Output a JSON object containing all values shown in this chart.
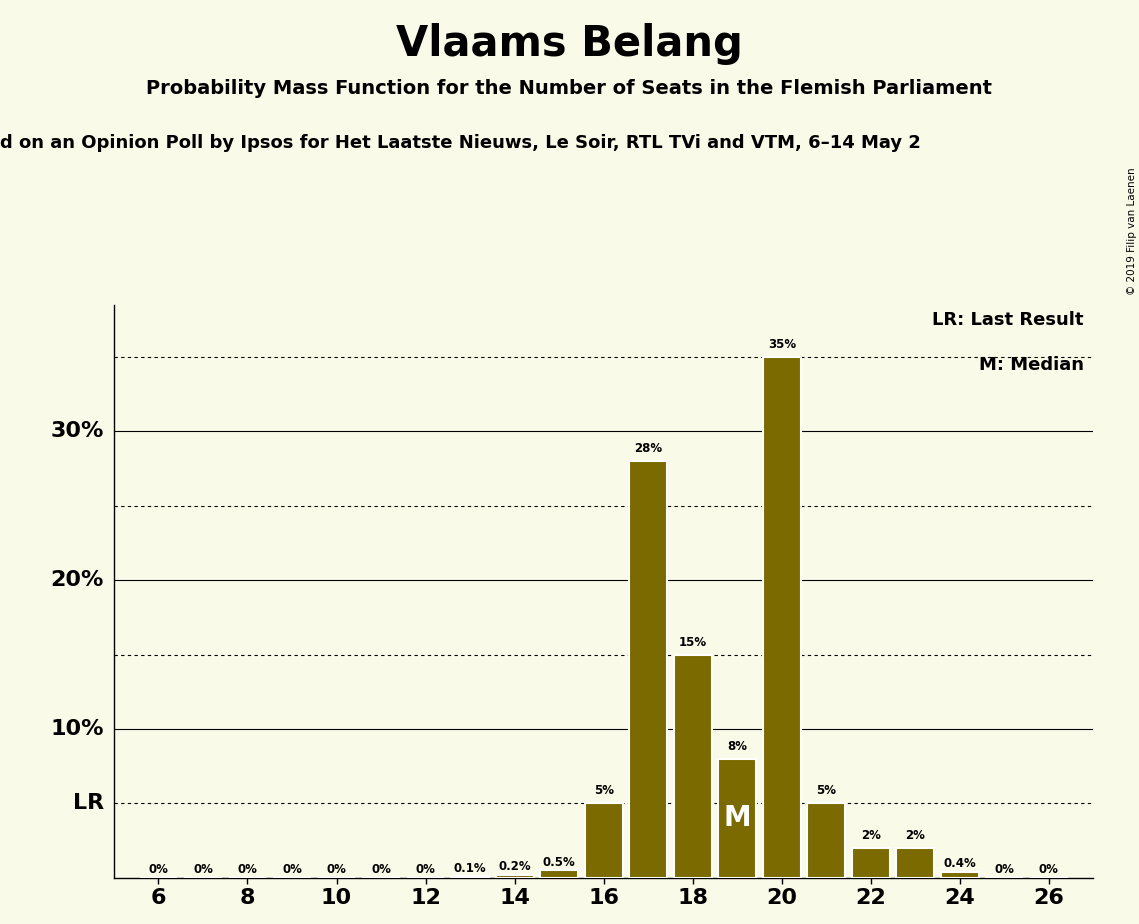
{
  "title": "Vlaams Belang",
  "subtitle": "Probability Mass Function for the Number of Seats in the Flemish Parliament",
  "subtitle2": "d on an Opinion Poll by Ipsos for Het Laatste Nieuws, Le Soir, RTL TVi and VTM, 6–14 May 2",
  "copyright": "© 2019 Filip van Laenen",
  "background_color": "#FAFAE8",
  "bar_color": "#7A6A00",
  "seats": [
    6,
    7,
    8,
    9,
    10,
    11,
    12,
    13,
    14,
    15,
    16,
    17,
    18,
    19,
    20,
    21,
    22,
    23,
    24,
    25,
    26
  ],
  "probabilities": [
    0.0,
    0.0,
    0.0,
    0.0,
    0.0,
    0.0,
    0.0,
    0.001,
    0.002,
    0.005,
    0.05,
    0.28,
    0.15,
    0.08,
    0.35,
    0.05,
    0.02,
    0.02,
    0.004,
    0.0,
    0.0
  ],
  "prob_labels": [
    "0%",
    "0%",
    "0%",
    "0%",
    "0%",
    "0%",
    "0%",
    "0.1%",
    "0.2%",
    "0.5%",
    "5%",
    "28%",
    "15%",
    "8%",
    "35%",
    "5%",
    "2%",
    "2%",
    "0.4%",
    "0%",
    "0%"
  ],
  "LR_seat": 16,
  "LR_prob": 0.05,
  "median_seat": 19,
  "median_prob": 0.08,
  "ylim": [
    0,
    0.385
  ],
  "ytick_positions": [
    0.05,
    0.1,
    0.15,
    0.2,
    0.25,
    0.3,
    0.35
  ],
  "ytick_labels_left": [
    "",
    "10%",
    "",
    "20%",
    "",
    "30%",
    ""
  ],
  "solid_yticks": [
    0.1,
    0.2,
    0.3
  ],
  "dotted_yticks": [
    0.05,
    0.15,
    0.25,
    0.35
  ],
  "xlim": [
    5.0,
    27.0
  ],
  "xticks": [
    6,
    8,
    10,
    12,
    14,
    16,
    18,
    20,
    22,
    24,
    26
  ]
}
